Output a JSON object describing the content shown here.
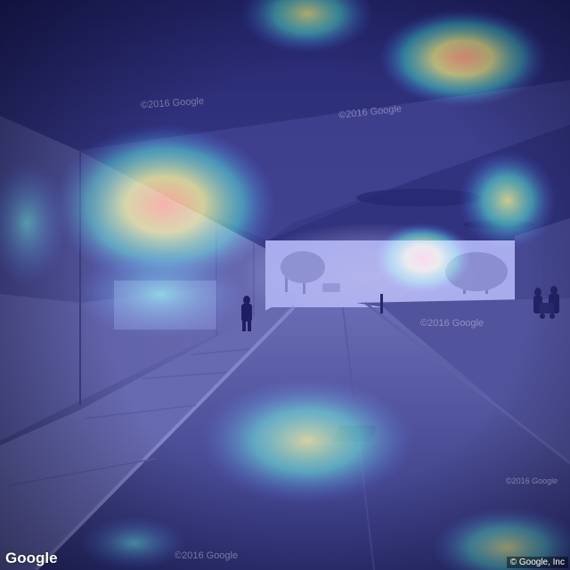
{
  "image": {
    "description_label": "Street View underpass with attention heatmap overlay",
    "colors": {
      "wall": "#7b7f92",
      "ceiling": "#3a3d5c",
      "road": "#4a4e66",
      "sky": "#f2f8ff",
      "heat_hot": "#ff8c00",
      "heat_mid": "#d8d800",
      "heat_low": "#00c8b4",
      "tint": "#1e1ec8"
    }
  },
  "watermarks": {
    "ceiling_left": "©2016 Google",
    "ceiling_center": "©2016 Google",
    "right_road": "©2016 Google",
    "right_lower": "©2016 Google",
    "bottom_center": "©2016 Google"
  },
  "branding": {
    "logo_text": "Google",
    "copyright_text": "© Google, Inc"
  }
}
